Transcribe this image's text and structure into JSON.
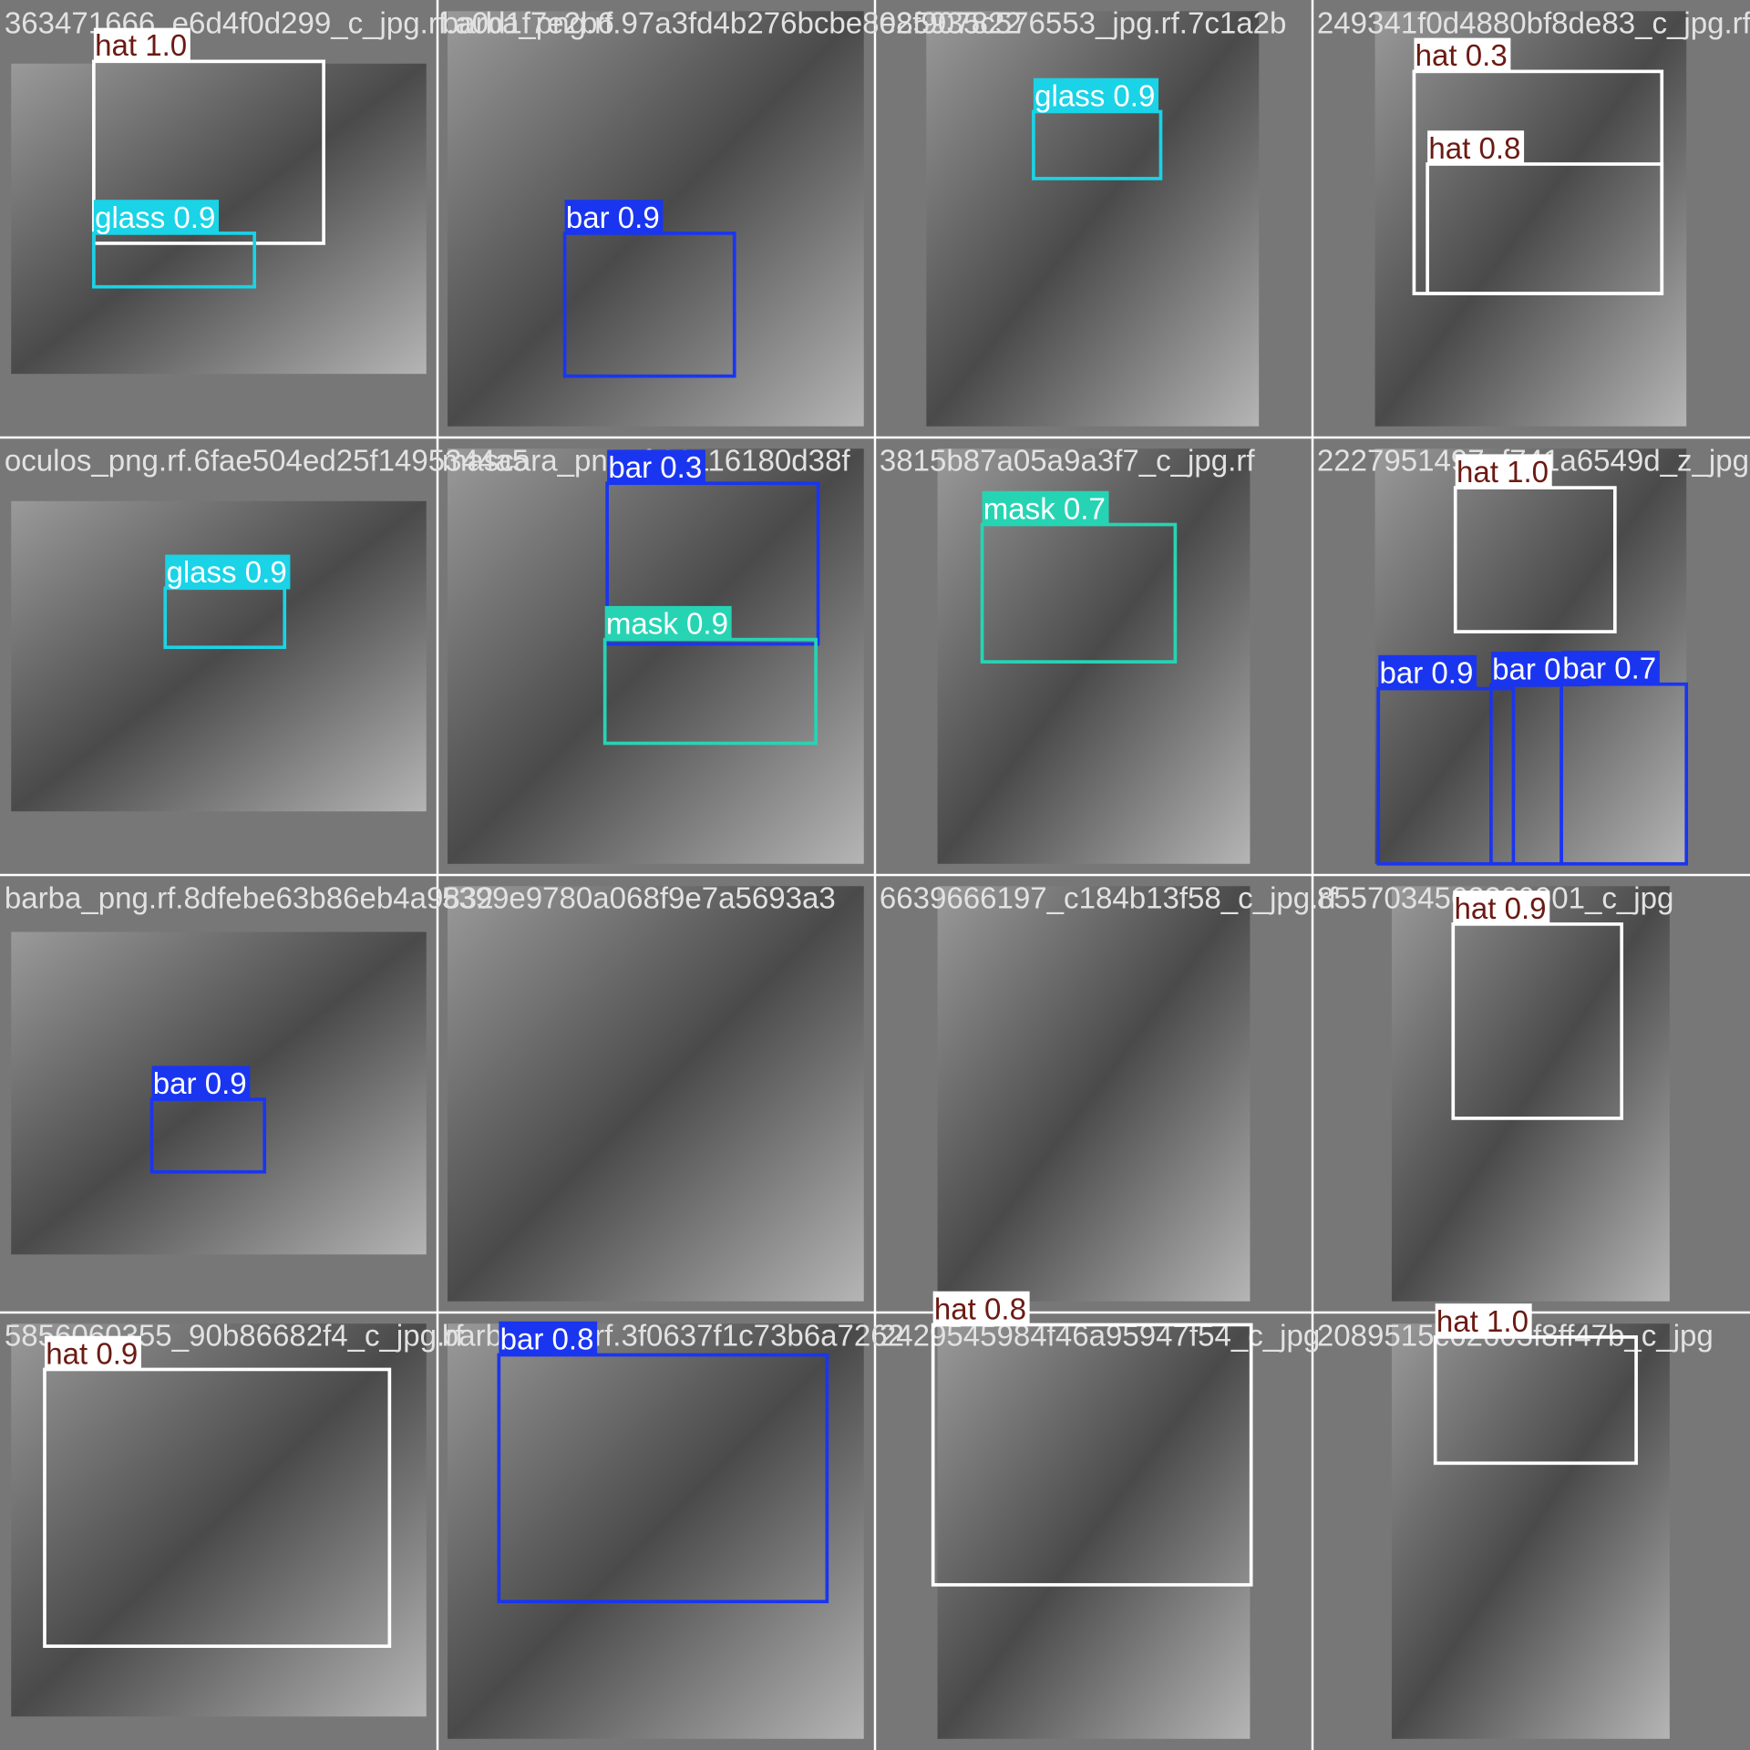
{
  "tiles": [
    {
      "filename": "363471666_e6d4f0d299_c_jpg.rf.a0d1f7e2b6",
      "detections": [
        {
          "label": "hat 1.0",
          "color": "#ffffff"
        },
        {
          "label": "glass 0.9",
          "color": "#1ad3e6"
        }
      ]
    },
    {
      "filename": "barba_png.rf.97a3fd4b276bcbe802f907822",
      "detections": [
        {
          "label": "bar 0.9",
          "color": "#1a35f0"
        }
      ]
    },
    {
      "filename": "e85935c576553_jpg.rf.7c1a2b",
      "detections": [
        {
          "label": "glass 0.9",
          "color": "#1ad3e6"
        }
      ]
    },
    {
      "filename": "249341f0d4880bf8de83_c_jpg.rf",
      "detections": [
        {
          "label": "hat 0.3",
          "color": "#ffffff"
        },
        {
          "label": "hat 0.8",
          "color": "#ffffff"
        }
      ]
    },
    {
      "filename": "oculos_png.rf.6fae504ed25f1495344a5",
      "detections": [
        {
          "label": "glass 0.9",
          "color": "#1ad3e6"
        }
      ]
    },
    {
      "filename": "mascara_png.rf.92116180d38f",
      "detections": [
        {
          "label": "bar 0.3",
          "color": "#1a35f0"
        },
        {
          "label": "mask 0.9",
          "color": "#26d4b4"
        }
      ]
    },
    {
      "filename": "3815b87a05a9a3f7_c_jpg.rf",
      "detections": [
        {
          "label": "mask 0.7",
          "color": "#26d4b4"
        }
      ]
    },
    {
      "filename": "2227951497_f741a6549d_z_jpg",
      "detections": [
        {
          "label": "hat 1.0",
          "color": "#ffffff"
        },
        {
          "label": "bar 0.9",
          "color": "#1a35f0"
        },
        {
          "label": "bar 0.5",
          "color": "#1a35f0"
        },
        {
          "label": "bar 0.7",
          "color": "#1a35f0"
        }
      ]
    },
    {
      "filename": "barba_png.rf.8dfebe63b86eb4a9832",
      "detections": [
        {
          "label": "bar 0.9",
          "color": "#1a35f0"
        }
      ]
    },
    {
      "filename": "5399e9780a068f9e7a5693a3",
      "detections": []
    },
    {
      "filename": "6639666197_c184b13f58_c_jpg.rf",
      "detections": []
    },
    {
      "filename": "8557034562320901_c_jpg",
      "detections": [
        {
          "label": "hat 0.9",
          "color": "#ffffff"
        }
      ]
    },
    {
      "filename": "5856060355_90b86682f4_c_jpg.rf",
      "detections": [
        {
          "label": "hat 0.9",
          "color": "#ffffff"
        }
      ]
    },
    {
      "filename": "barba_png.rf.3f0637f1c73b6a7262",
      "detections": [
        {
          "label": "bar 0.8",
          "color": "#1a35f0"
        }
      ]
    },
    {
      "filename": "2429545984f46a95947f54_c_jpg",
      "detections": [
        {
          "label": "hat 0.8",
          "color": "#ffffff"
        }
      ]
    },
    {
      "filename": "2089515c62603f8ff47b_c_jpg",
      "detections": [
        {
          "label": "hat 1.0",
          "color": "#ffffff"
        }
      ]
    }
  ]
}
